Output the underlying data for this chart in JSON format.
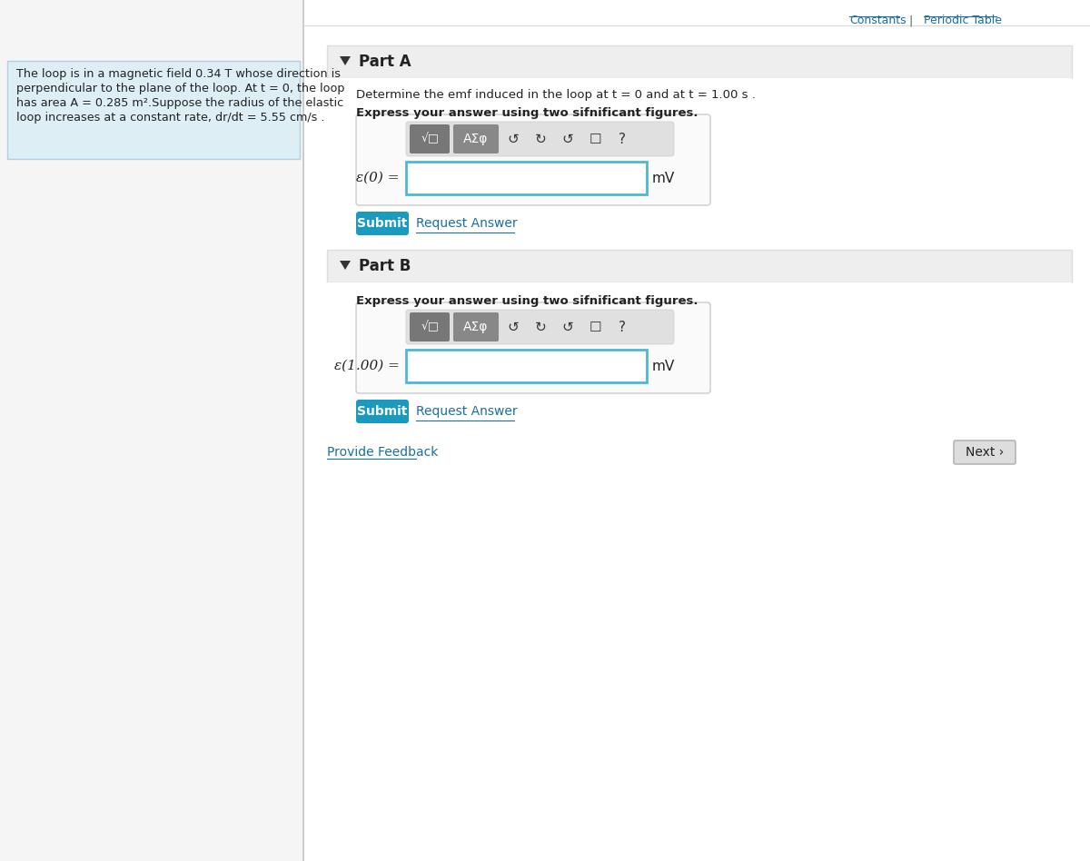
{
  "bg_color": "#f5f5f5",
  "white": "#ffffff",
  "teal_btn": "#1a9abe",
  "link_color": "#1a6fa0",
  "input_border": "#4db8d4",
  "text_color": "#222222",
  "left_panel_bg": "#ddeef5",
  "left_panel_border": "#b0cfe0",
  "part_header_bg": "#eeeeee",
  "part_header_border": "#dddddd",
  "toolbar_bg": "#e0e0e0",
  "btn_dark1": "#777777",
  "btn_dark2": "#888888",
  "separator_color": "#cccccc",
  "input_bg": "#fafafa",
  "next_btn_bg": "#dddddd",
  "next_btn_border": "#aaaaaa",
  "part_a_label": "Part A",
  "part_b_label": "Part B",
  "part_a_desc1": "Determine the emf induced in the loop at t = 0 and at t = 1.00 s .",
  "part_a_desc2": "Express your answer using two sifnificant figures.",
  "part_b_desc": "Express your answer using two sifnificant figures.",
  "emf0_label": "ε(0) =",
  "emf1_label": "ε(1.00) =",
  "unit": "mV",
  "submit_text": "Submit",
  "request_text": "Request Answer",
  "feedback_text": "Provide Feedback",
  "next_text": "Next ›",
  "constants_text": "Constants",
  "pipe_text": "  |  ",
  "periodic_text": "Periodic Table",
  "left_text_line1": "The loop is in a magnetic field 0.34 T whose direction is",
  "left_text_line2": "perpendicular to the plane of the loop. At t = 0, the loop",
  "left_text_line3": "has area A = 0.285 m².Suppose the radius of the elastic",
  "left_text_line4": "loop increases at a constant rate, dr/dt = 5.55 cm/s .",
  "icon1": "√□",
  "icon2": "AΣφ",
  "icon3": "↺",
  "icon4": "↻",
  "icon5": "↺",
  "icon6": "☐",
  "icon7": "?"
}
